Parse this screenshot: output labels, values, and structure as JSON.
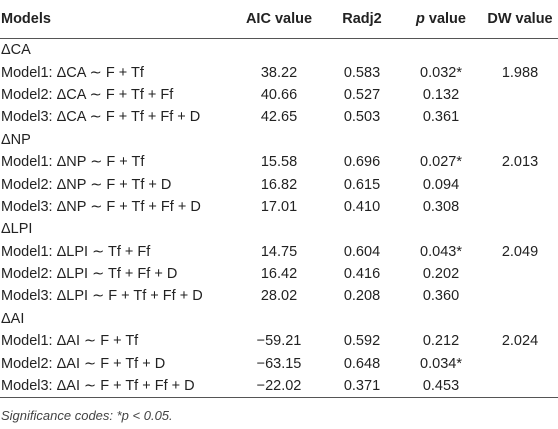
{
  "headers": {
    "model": "Models",
    "aic": "AIC value",
    "radj": "Radj2",
    "p_italic": "p",
    "p_rest": " value",
    "dw": "DW value"
  },
  "groups": [
    {
      "label": "ΔCA",
      "rows": [
        {
          "model": "Model1: ΔCA ∼ F + Tf",
          "aic": "38.22",
          "radj": "0.583",
          "p": "0.032*",
          "dw": "1.988"
        },
        {
          "model": "Model2: ΔCA ∼ F + Tf + Ff",
          "aic": "40.66",
          "radj": "0.527",
          "p": "0.132",
          "dw": ""
        },
        {
          "model": "Model3: ΔCA ∼ F + Tf + Ff + D",
          "aic": "42.65",
          "radj": "0.503",
          "p": "0.361",
          "dw": ""
        }
      ]
    },
    {
      "label": "ΔNP",
      "rows": [
        {
          "model": "Model1: ΔNP ∼ F + Tf",
          "aic": "15.58",
          "radj": "0.696",
          "p": "0.027*",
          "dw": "2.013"
        },
        {
          "model": "Model2: ΔNP ∼ F + Tf + D",
          "aic": "16.82",
          "radj": "0.615",
          "p": "0.094",
          "dw": ""
        },
        {
          "model": "Model3: ΔNP ∼ F + Tf + Ff + D",
          "aic": "17.01",
          "radj": "0.410",
          "p": "0.308",
          "dw": ""
        }
      ]
    },
    {
      "label": "ΔLPI",
      "rows": [
        {
          "model": "Model1: ΔLPI ∼ Tf + Ff",
          "aic": "14.75",
          "radj": "0.604",
          "p": "0.043*",
          "dw": "2.049"
        },
        {
          "model": "Model2: ΔLPI ∼ Tf + Ff + D",
          "aic": "16.42",
          "radj": "0.416",
          "p": "0.202",
          "dw": ""
        },
        {
          "model": "Model3: ΔLPI ∼ F + Tf + Ff + D",
          "aic": "28.02",
          "radj": "0.208",
          "p": "0.360",
          "dw": ""
        }
      ]
    },
    {
      "label": "ΔAI",
      "rows": [
        {
          "model": "Model1: ΔAI ∼ F + Tf",
          "aic": "−59.21",
          "radj": "0.592",
          "p": "0.212",
          "dw": "2.024"
        },
        {
          "model": "Model2: ΔAI ∼ F + Tf + D",
          "aic": "−63.15",
          "radj": "0.648",
          "p": "0.034*",
          "dw": ""
        },
        {
          "model": "Model3: ΔAI ∼ F + Tf + Ff + D",
          "aic": "−22.02",
          "radj": "0.371",
          "p": "0.453",
          "dw": ""
        }
      ]
    }
  ],
  "footnote": "Significance codes: *p < 0.05."
}
